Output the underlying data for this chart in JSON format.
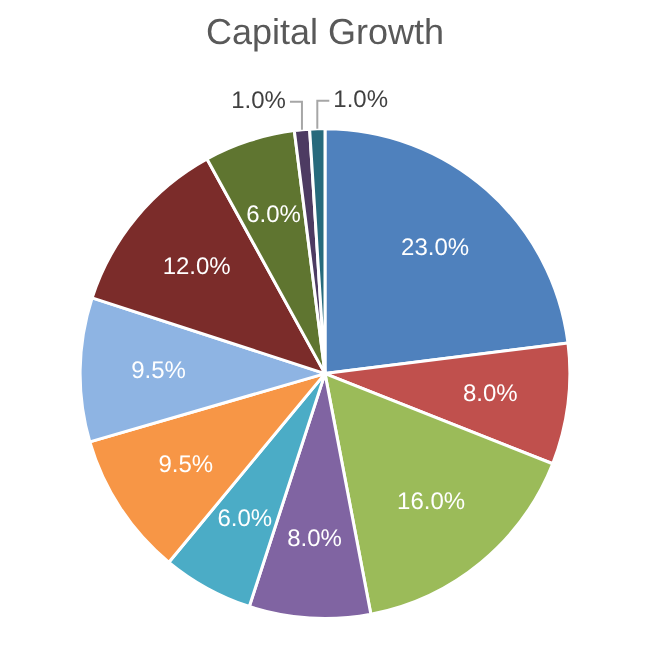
{
  "chart_data": {
    "type": "pie",
    "title": "Capital Growth",
    "categories": [
      null,
      null,
      null,
      null,
      null,
      null,
      null,
      null,
      null,
      null,
      null
    ],
    "values": [
      23.0,
      8.0,
      16.0,
      8.0,
      6.0,
      9.5,
      9.5,
      12.0,
      6.0,
      1.0,
      1.0
    ],
    "value_labels": [
      "23.0%",
      "8.0%",
      "16.0%",
      "8.0%",
      "6.0%",
      "9.5%",
      "9.5%",
      "12.0%",
      "6.0%",
      "1.0%",
      "1.0%"
    ],
    "colors": [
      "#4f81bd",
      "#c0504d",
      "#9bbb59",
      "#8064a2",
      "#4bacc6",
      "#f79646",
      "#8eb4e3",
      "#7b2c2a",
      "#5f7530",
      "#4d3b62",
      "#276a7c"
    ]
  }
}
